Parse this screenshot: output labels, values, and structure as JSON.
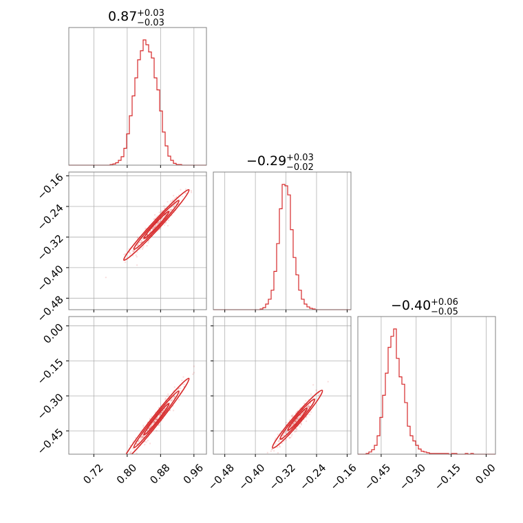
{
  "chart_data": {
    "type": "corner",
    "color": "#d62728",
    "parameters": [
      {
        "index": 0,
        "range": [
          0.66,
          0.99
        ],
        "ticks": [
          0.72,
          0.8,
          0.88,
          0.96
        ],
        "tick_labels": [
          "0.72",
          "0.80",
          "0.88",
          "0.96"
        ]
      },
      {
        "index": 1,
        "range": [
          -0.51,
          -0.15
        ],
        "ticks": [
          -0.48,
          -0.4,
          -0.32,
          -0.24,
          -0.16
        ],
        "tick_labels": [
          "−0.48",
          "−0.40",
          "−0.32",
          "−0.24",
          "−0.16"
        ]
      },
      {
        "index": 2,
        "range": [
          -0.55,
          0.04
        ],
        "ticks": [
          -0.45,
          -0.3,
          -0.15,
          0.0
        ],
        "tick_labels": [
          "−0.45",
          "−0.30",
          "−0.15",
          "0.00"
        ]
      }
    ],
    "titles": [
      {
        "value": "0.87",
        "upper": "+0.03",
        "lower": "−0.03"
      },
      {
        "value": "−0.29",
        "upper": "+0.03",
        "lower": "−0.02"
      },
      {
        "value": "−0.40",
        "upper": "+0.06",
        "lower": "−0.05"
      }
    ],
    "histograms": [
      {
        "param": 0,
        "bin_start": 0.66,
        "bin_width": 0.0066,
        "counts": [
          0,
          0,
          0,
          0,
          0,
          0,
          0,
          0,
          0,
          0,
          0,
          0,
          0,
          0,
          0,
          1,
          2,
          4,
          8,
          14,
          28,
          52,
          82,
          115,
          145,
          175,
          190,
          208,
          200,
          188,
          178,
          145,
          125,
          90,
          55,
          32,
          15,
          8,
          3,
          1,
          1,
          0,
          0,
          0,
          0,
          0,
          0,
          0,
          0,
          0
        ]
      },
      {
        "param": 1,
        "bin_start": -0.51,
        "bin_width": 0.0072,
        "counts": [
          0,
          0,
          0,
          0,
          0,
          0,
          0,
          0,
          0,
          0,
          0,
          0,
          0,
          0,
          0,
          0,
          0,
          1,
          3,
          8,
          15,
          28,
          55,
          95,
          145,
          180,
          178,
          165,
          115,
          75,
          50,
          28,
          15,
          8,
          4,
          2,
          1,
          0,
          0,
          0,
          0,
          0,
          0,
          0,
          0,
          0,
          0,
          0,
          0,
          0
        ]
      },
      {
        "param": 2,
        "bin_start": -0.55,
        "bin_width": 0.0118,
        "counts": [
          0,
          0,
          0,
          1,
          3,
          6,
          12,
          25,
          50,
          80,
          110,
          145,
          160,
          170,
          130,
          105,
          95,
          70,
          38,
          25,
          18,
          12,
          7,
          4,
          3,
          2,
          1,
          1,
          1,
          1,
          1,
          1,
          1,
          0,
          1,
          1,
          0,
          0,
          0,
          1,
          0,
          1,
          0,
          0,
          0,
          0,
          0,
          0,
          0,
          0
        ]
      }
    ],
    "scatter_pairs": [
      {
        "x_param": 0,
        "y_param": 1,
        "rows": 1,
        "cols": 0,
        "slope": 1.18,
        "intercept": -1.315,
        "x_mean": 0.87,
        "x_sd": 0.03,
        "noise": 0.012
      },
      {
        "x_param": 0,
        "y_param": 2,
        "rows": 2,
        "cols": 0,
        "slope": 2.25,
        "intercept": -2.358,
        "x_mean": 0.87,
        "x_sd": 0.03,
        "noise": 0.018
      },
      {
        "x_param": 1,
        "y_param": 2,
        "rows": 2,
        "cols": 1,
        "slope": 1.9,
        "intercept": 0.151,
        "x_mean": -0.29,
        "x_sd": 0.025,
        "noise": 0.02
      }
    ],
    "grid": true
  }
}
